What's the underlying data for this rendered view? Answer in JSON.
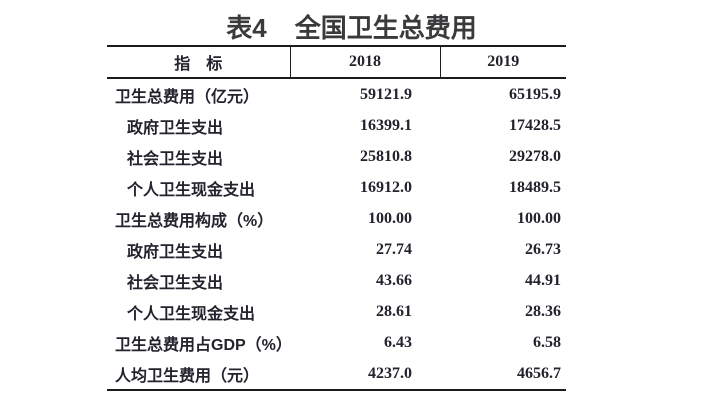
{
  "title": {
    "prefix": "表4",
    "text": "全国卫生总费用"
  },
  "colors": {
    "title_text": "#3a3a3c",
    "table_text": "#23232d",
    "table_border": "#1c1c1c",
    "background": "#ffffff"
  },
  "table": {
    "headers": [
      "指　标",
      "2018",
      "2019"
    ],
    "rows": [
      {
        "label": "卫生总费用（亿元）",
        "indent": false,
        "v2018": "59121.9",
        "v2019": "65195.9"
      },
      {
        "label": "政府卫生支出",
        "indent": true,
        "v2018": "16399.1",
        "v2019": "17428.5"
      },
      {
        "label": "社会卫生支出",
        "indent": true,
        "v2018": "25810.8",
        "v2019": "29278.0"
      },
      {
        "label": "个人卫生现金支出",
        "indent": true,
        "v2018": "16912.0",
        "v2019": "18489.5"
      },
      {
        "label": "卫生总费用构成（%）",
        "indent": false,
        "v2018": "100.00",
        "v2019": "100.00"
      },
      {
        "label": "政府卫生支出",
        "indent": true,
        "v2018": "27.74",
        "v2019": "26.73"
      },
      {
        "label": "社会卫生支出",
        "indent": true,
        "v2018": "43.66",
        "v2019": "44.91"
      },
      {
        "label": "个人卫生现金支出",
        "indent": true,
        "v2018": "28.61",
        "v2019": "28.36"
      },
      {
        "label": "卫生总费用占GDP（%）",
        "indent": false,
        "v2018": "6.43",
        "v2019": "6.58"
      },
      {
        "label": "人均卫生费用（元）",
        "indent": false,
        "v2018": "4237.0",
        "v2019": "4656.7"
      }
    ]
  }
}
